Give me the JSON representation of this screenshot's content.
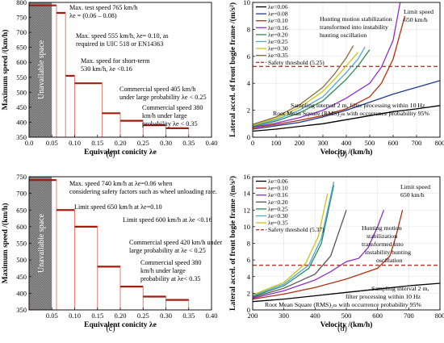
{
  "chart_data": [
    {
      "type": "bar",
      "caption": "(a)",
      "xlabel": "Equivalent conicity λe",
      "ylabel": "Maximum speed /(km/h)",
      "xlim": [
        0.0,
        0.4
      ],
      "ylim": [
        350,
        800
      ],
      "xticks": [
        "0.0",
        "0.05",
        "0.10",
        "0.15",
        "0.20",
        "0.25",
        "0.30",
        "0.35",
        "0.40"
      ],
      "yticks": [
        "350",
        "400",
        "450",
        "500",
        "550",
        "600",
        "650",
        "700",
        "750",
        "800"
      ],
      "grid": false,
      "steps": [
        {
          "x0": 0.0,
          "x1": 0.06,
          "value": 790
        },
        {
          "x0": 0.06,
          "x1": 0.08,
          "value": 765
        },
        {
          "x0": 0.08,
          "x1": 0.1,
          "value": 555
        },
        {
          "x0": 0.1,
          "x1": 0.16,
          "value": 530
        },
        {
          "x0": 0.16,
          "x1": 0.2,
          "value": 430
        },
        {
          "x0": 0.2,
          "x1": 0.25,
          "value": 405
        },
        {
          "x0": 0.25,
          "x1": 0.3,
          "value": 390
        },
        {
          "x0": 0.3,
          "x1": 0.35,
          "value": 380
        }
      ],
      "region_label": "Unavailable space",
      "annotations": [
        {
          "text": "Max. test speed 765 km/h"
        },
        {
          "text": "λe = (0.06 – 0.08)"
        },
        {
          "text": "Max. speed 555 km/h, λe= 0.10, as"
        },
        {
          "text": "required in UIC 518 or EN14363"
        },
        {
          "text": "Max. speed for short-term"
        },
        {
          "text": "530 km/h, λe <0.16"
        },
        {
          "text": "Commercial speed 405 km/h"
        },
        {
          "text": "under large probability λe < 0.25"
        },
        {
          "text": "Commercial speed 380"
        },
        {
          "text": "km/h under large"
        },
        {
          "text": "probability λe < 0.35"
        }
      ]
    },
    {
      "type": "line",
      "caption": "(b)",
      "xlabel": "Velocity /(km/h)",
      "ylabel": "Lateral accel. of front bogie frame /(m/s²)",
      "xlim": [
        0,
        800
      ],
      "ylim": [
        0,
        10
      ],
      "xticks": [
        "0",
        "100",
        "200",
        "300",
        "400",
        "500",
        "600",
        "700",
        "800"
      ],
      "yticks": [
        "0",
        "2",
        "4",
        "6",
        "8",
        "10"
      ],
      "grid": true,
      "legend_position": "top-left",
      "threshold": {
        "label": "Safety threshold (5.25)",
        "value": 5.25,
        "color": "#c0392b"
      },
      "series": [
        {
          "name": "λe=0.06",
          "color": "#000000",
          "x": [
            0,
            100,
            200,
            300,
            400,
            500,
            600,
            700,
            800
          ],
          "y": [
            0.45,
            0.6,
            0.8,
            1.0,
            1.3,
            1.6,
            1.9,
            2.1,
            2.35
          ]
        },
        {
          "name": "λe=0.08",
          "color": "#1f3b8f",
          "x": [
            0,
            100,
            200,
            300,
            400,
            500,
            600,
            700,
            800
          ],
          "y": [
            0.6,
            0.85,
            1.1,
            1.5,
            2.0,
            2.6,
            3.2,
            3.7,
            4.2
          ]
        },
        {
          "name": "λe=0.10",
          "color": "#b03010",
          "x": [
            0,
            100,
            200,
            300,
            400,
            500,
            550,
            600,
            650
          ],
          "y": [
            0.7,
            0.95,
            1.25,
            1.6,
            2.1,
            3.0,
            4.0,
            5.8,
            9.0
          ]
        },
        {
          "name": "λe=0.16",
          "color": "#8b2fc9",
          "x": [
            0,
            100,
            200,
            300,
            400,
            500,
            550,
            600,
            630
          ],
          "y": [
            0.75,
            1.05,
            1.45,
            2.0,
            2.9,
            4.0,
            5.2,
            7.2,
            10.0
          ]
        },
        {
          "name": "λe=0.20",
          "color": "#2e8b57",
          "x": [
            0,
            100,
            200,
            300,
            350,
            400,
            450,
            500
          ],
          "y": [
            0.8,
            1.2,
            1.8,
            2.7,
            3.5,
            4.3,
            5.3,
            6.5
          ]
        },
        {
          "name": "λe=0.25",
          "color": "#4fa8d8",
          "x": [
            0,
            100,
            200,
            300,
            350,
            400,
            450,
            480
          ],
          "y": [
            0.85,
            1.3,
            2.0,
            3.0,
            3.9,
            4.8,
            5.8,
            6.7
          ]
        },
        {
          "name": "λe=0.30",
          "color": "#c9c417",
          "x": [
            0,
            100,
            200,
            300,
            350,
            400,
            450
          ],
          "y": [
            0.9,
            1.4,
            2.2,
            3.4,
            4.3,
            5.3,
            6.3
          ]
        },
        {
          "name": "λe=0.35",
          "color": "#8a6d3b",
          "x": [
            0,
            100,
            200,
            300,
            350,
            400,
            430
          ],
          "y": [
            0.95,
            1.5,
            2.4,
            3.7,
            4.7,
            5.9,
            6.8
          ]
        }
      ],
      "annotations": [
        {
          "text": "Hunting motion stabilization"
        },
        {
          "text": "transformed into instability"
        },
        {
          "text": "hunting oscillation"
        },
        {
          "text": "Limit speed"
        },
        {
          "text": "650 km/h"
        },
        {
          "text": "Sampling interval 2 m, filter processing within 10 Hz"
        },
        {
          "text": "Root Mean Square (RMS)₂ₘ with occurrence probability 95%"
        }
      ]
    },
    {
      "type": "bar",
      "caption": "(c)",
      "xlabel": "Equivalent conicity λe",
      "ylabel": "Maximum speed /(km/h)",
      "xlim": [
        0.0,
        0.4
      ],
      "ylim": [
        350,
        750
      ],
      "xticks": [
        "0.05",
        "0.10",
        "0.15",
        "0.20",
        "0.25",
        "0.30",
        "0.35",
        "0.40"
      ],
      "yticks": [
        "350",
        "400",
        "450",
        "500",
        "550",
        "600",
        "650",
        "700",
        "750"
      ],
      "grid": false,
      "steps": [
        {
          "x0": 0.0,
          "x1": 0.06,
          "value": 740
        },
        {
          "x0": 0.06,
          "x1": 0.1,
          "value": 650
        },
        {
          "x0": 0.1,
          "x1": 0.15,
          "value": 600
        },
        {
          "x0": 0.15,
          "x1": 0.2,
          "value": 480
        },
        {
          "x0": 0.2,
          "x1": 0.25,
          "value": 420
        },
        {
          "x0": 0.25,
          "x1": 0.3,
          "value": 390
        },
        {
          "x0": 0.3,
          "x1": 0.35,
          "value": 380
        }
      ],
      "region_label": "Unavailable space",
      "annotations": [
        {
          "text": "Max. speed 740 km/h at λe=0.06 when"
        },
        {
          "text": "considering safety factors such as wheel unloading rate."
        },
        {
          "text": "Limit speed 650 km/h at λe=0.10"
        },
        {
          "text": "Limit speed 600 km/h at λe <0.16"
        },
        {
          "text": "Commercial speed 420 km/h under"
        },
        {
          "text": "large probability at λe < 0.25"
        },
        {
          "text": "Commercial speed 380"
        },
        {
          "text": "km/h under large"
        },
        {
          "text": "probability at λe< 0.35"
        }
      ]
    },
    {
      "type": "line",
      "caption": "(d)",
      "xlabel": "Velocity /(km/h)",
      "ylabel": "Lateral accel. of front bogie frame /(m/s²)",
      "xlim": [
        200,
        800
      ],
      "ylim": [
        0,
        16
      ],
      "xticks": [
        "200",
        "300",
        "400",
        "500",
        "600",
        "700",
        "800"
      ],
      "yticks": [
        "0",
        "2",
        "4",
        "6",
        "8",
        "10",
        "12",
        "14",
        "16"
      ],
      "grid": true,
      "legend_position": "top-left",
      "threshold": {
        "label": "Safety threshold (5.37)",
        "value": 5.37,
        "color": "#c0392b"
      },
      "series": [
        {
          "name": "λe=0.06",
          "color": "#000000",
          "x": [
            200,
            300,
            400,
            500,
            600,
            700,
            800
          ],
          "y": [
            1.0,
            1.3,
            1.7,
            2.1,
            2.5,
            2.9,
            3.2
          ]
        },
        {
          "name": "λe=0.10",
          "color": "#b03010",
          "x": [
            200,
            300,
            400,
            500,
            600,
            640,
            660,
            680
          ],
          "y": [
            1.3,
            1.9,
            2.7,
            3.7,
            5.0,
            6.5,
            9.0,
            12.0
          ]
        },
        {
          "name": "λe=0.16",
          "color": "#8b2fc9",
          "x": [
            200,
            300,
            400,
            450,
            500,
            540,
            570,
            600,
            620
          ],
          "y": [
            1.4,
            2.3,
            3.6,
            4.6,
            5.8,
            6.2,
            7.5,
            10.0,
            12.0
          ]
        },
        {
          "name": "λe=0.20",
          "color": "#555555",
          "x": [
            200,
            300,
            400,
            450,
            500
          ],
          "y": [
            1.5,
            2.6,
            4.3,
            6.5,
            12.0
          ]
        },
        {
          "name": "λe=0.25",
          "color": "#2e8b57",
          "x": [
            200,
            300,
            380,
            420,
            460
          ],
          "y": [
            1.6,
            2.9,
            5.0,
            8.0,
            15.0
          ]
        },
        {
          "name": "λe=0.30",
          "color": "#4fa8d8",
          "x": [
            200,
            300,
            380,
            420,
            460
          ],
          "y": [
            1.7,
            3.1,
            5.4,
            8.6,
            15.4
          ]
        },
        {
          "name": "λe=0.35",
          "color": "#c9c417",
          "x": [
            200,
            300,
            370,
            410,
            440
          ],
          "y": [
            1.8,
            3.3,
            5.6,
            8.8,
            14.0
          ]
        }
      ],
      "annotations": [
        {
          "text": "Limit speed"
        },
        {
          "text": "650 km/h"
        },
        {
          "text": "Hunting motion"
        },
        {
          "text": "stabilization"
        },
        {
          "text": "transformed into"
        },
        {
          "text": "instability hunting"
        },
        {
          "text": "oscillation"
        },
        {
          "text": "Sampling interval 2 m,"
        },
        {
          "text": "filter processing within 10 Hz"
        },
        {
          "text": "Root Mean Square (RMS)₂ₘ with occurrence probability 95%"
        }
      ]
    }
  ]
}
